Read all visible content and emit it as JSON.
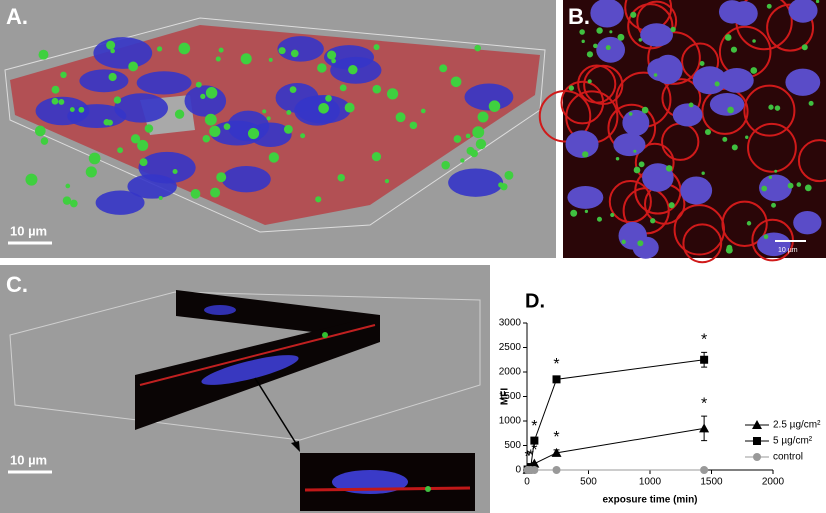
{
  "panels": {
    "a": {
      "label": "A.",
      "scale_bar": "10 µm"
    },
    "b": {
      "label": "B.",
      "scale_bar": "10 µm"
    },
    "c": {
      "label": "C.",
      "scale_bar": "10 µm"
    },
    "d": {
      "label": "D."
    }
  },
  "chart_data": {
    "type": "line",
    "x_label": "exposure time (min)",
    "y_label": "MFI",
    "xlim": [
      0,
      2000
    ],
    "xticks": [
      0,
      500,
      1000,
      1500,
      2000
    ],
    "ylim": [
      0,
      3000
    ],
    "yticks": [
      0,
      500,
      1000,
      1500,
      2000,
      2500,
      3000
    ],
    "x": [
      5,
      30,
      60,
      240,
      1440
    ],
    "series": [
      {
        "name": "2.5 µg/cm²",
        "color": "#000000",
        "marker": "triangle",
        "values": [
          5,
          30,
          130,
          350,
          850
        ],
        "errors": [
          0,
          0,
          20,
          60,
          250
        ],
        "significance": [
          null,
          "*",
          "*",
          "*",
          "*"
        ]
      },
      {
        "name": "5 µg/cm²",
        "color": "#000000",
        "marker": "square",
        "values": [
          10,
          60,
          600,
          1850,
          2250
        ],
        "errors": [
          0,
          0,
          40,
          50,
          150
        ],
        "significance": [
          "*",
          null,
          "*",
          "*",
          "*"
        ]
      },
      {
        "name": "control",
        "color": "#999999",
        "marker": "circle",
        "values": [
          0,
          0,
          0,
          0,
          0
        ],
        "errors": [
          0,
          0,
          0,
          0,
          0
        ],
        "significance": [
          null,
          null,
          null,
          null,
          null
        ]
      }
    ]
  }
}
